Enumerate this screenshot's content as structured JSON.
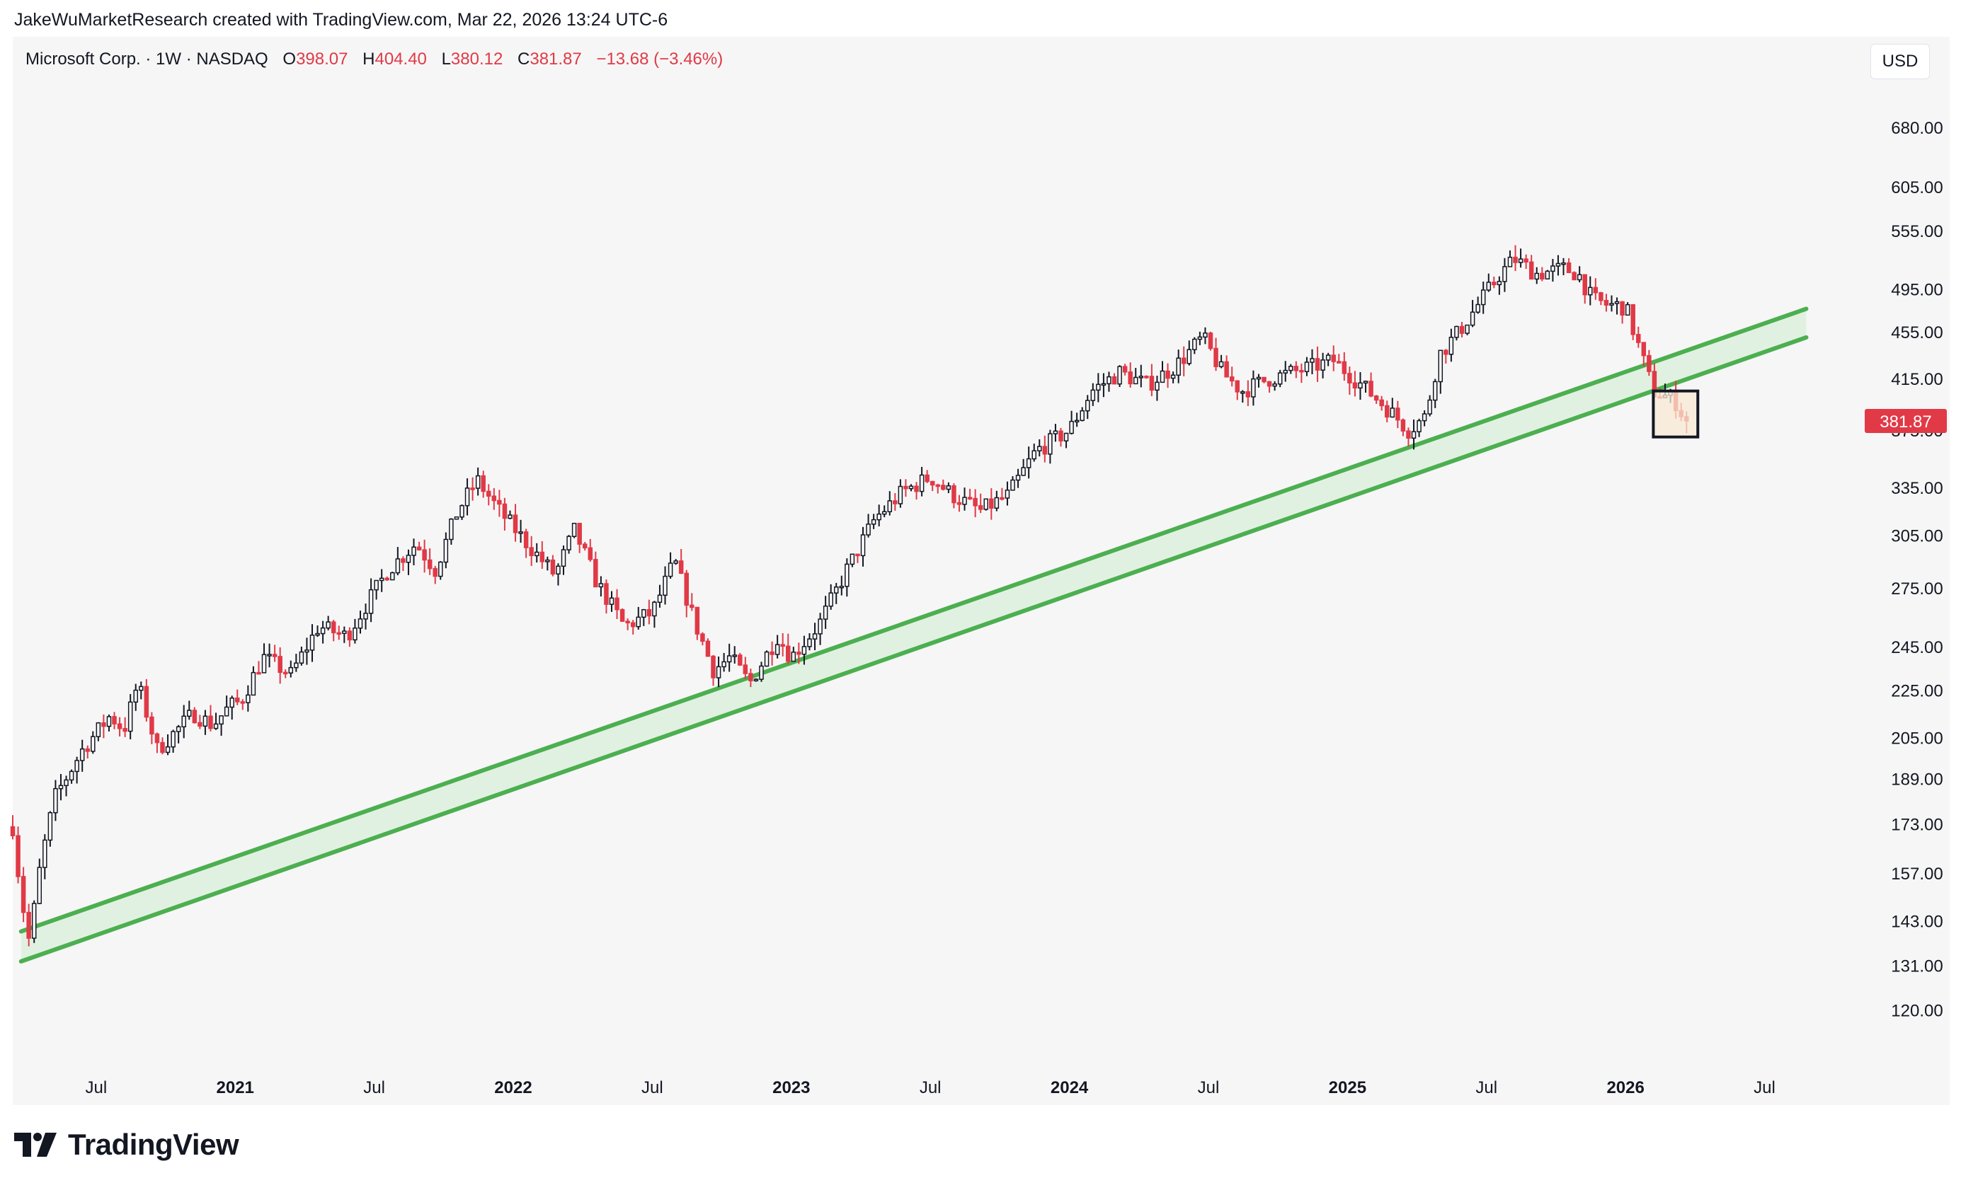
{
  "header": {
    "attribution": "JakeWuMarketResearch created with TradingView.com, Mar 22, 2026 13:24 UTC-6"
  },
  "legend": {
    "symbol": "Microsoft Corp. · 1W · NASDAQ",
    "open_label": "O",
    "open": "398.07",
    "high_label": "H",
    "high": "404.40",
    "low_label": "L",
    "low": "380.12",
    "close_label": "C",
    "close": "381.87",
    "change": "−13.68 (−3.46%)"
  },
  "currency": "USD",
  "footer": {
    "brand": "TradingView",
    "logo_icon": "tradingview-logo-icon"
  },
  "colors": {
    "up": "#131722",
    "down": "#e13946",
    "channel": "#4caf50",
    "channel_fill": "#e1f1e1",
    "highlight_fill": "#f8e9d3",
    "last_price_bg": "#e13946"
  },
  "chart_data": {
    "type": "candlestick",
    "title": "Microsoft Corp. · 1W · NASDAQ",
    "y_scale": "log",
    "ylim": [
      110,
      760
    ],
    "y_ticks": [
      120,
      131,
      143,
      157,
      173,
      189,
      205,
      225,
      245,
      275,
      305,
      335,
      375,
      415,
      455,
      495,
      555,
      605,
      680
    ],
    "y_tick_labels": [
      "120.00",
      "131.00",
      "143.00",
      "157.00",
      "173.00",
      "189.00",
      "205.00",
      "225.00",
      "245.00",
      "275.00",
      "305.00",
      "335.00",
      "375.00",
      "415.00",
      "455.00",
      "495.00",
      "555.00",
      "605.00",
      "680.00"
    ],
    "xlim": [
      2020.2,
      2026.85
    ],
    "x_ticks": [
      2020.5,
      2021.0,
      2021.5,
      2022.0,
      2022.5,
      2023.0,
      2023.5,
      2024.0,
      2024.5,
      2025.0,
      2025.5,
      2026.0,
      2026.5
    ],
    "x_tick_labels": [
      "Jul",
      "2021",
      "Jul",
      "2022",
      "Jul",
      "2023",
      "Jul",
      "2024",
      "Jul",
      "2025",
      "Jul",
      "2026",
      "Jul"
    ],
    "x_tick_bold": [
      false,
      true,
      false,
      true,
      false,
      true,
      false,
      true,
      false,
      true,
      false,
      true,
      false
    ],
    "last_price": 381.87,
    "last_price_label": "381.87",
    "price_path": [
      [
        2020.2,
        172
      ],
      [
        2020.23,
        150
      ],
      [
        2020.26,
        137
      ],
      [
        2020.3,
        160
      ],
      [
        2020.35,
        182
      ],
      [
        2020.45,
        200
      ],
      [
        2020.55,
        214
      ],
      [
        2020.6,
        208
      ],
      [
        2020.65,
        228
      ],
      [
        2020.72,
        200
      ],
      [
        2020.85,
        215
      ],
      [
        2020.92,
        210
      ],
      [
        2020.98,
        218
      ],
      [
        2021.02,
        220
      ],
      [
        2021.1,
        240
      ],
      [
        2021.2,
        232
      ],
      [
        2021.3,
        255
      ],
      [
        2021.4,
        250
      ],
      [
        2021.55,
        285
      ],
      [
        2021.65,
        300
      ],
      [
        2021.72,
        285
      ],
      [
        2021.8,
        320
      ],
      [
        2021.87,
        340
      ],
      [
        2021.95,
        320
      ],
      [
        2022.05,
        300
      ],
      [
        2022.15,
        282
      ],
      [
        2022.22,
        308
      ],
      [
        2022.3,
        278
      ],
      [
        2022.4,
        255
      ],
      [
        2022.5,
        262
      ],
      [
        2022.58,
        290
      ],
      [
        2022.65,
        258
      ],
      [
        2022.72,
        234
      ],
      [
        2022.78,
        240
      ],
      [
        2022.85,
        228
      ],
      [
        2022.95,
        250
      ],
      [
        2023.0,
        240
      ],
      [
        2023.1,
        256
      ],
      [
        2023.2,
        285
      ],
      [
        2023.3,
        315
      ],
      [
        2023.4,
        332
      ],
      [
        2023.5,
        342
      ],
      [
        2023.58,
        330
      ],
      [
        2023.68,
        320
      ],
      [
        2023.78,
        330
      ],
      [
        2023.88,
        360
      ],
      [
        2024.0,
        375
      ],
      [
        2024.08,
        405
      ],
      [
        2024.18,
        420
      ],
      [
        2024.28,
        410
      ],
      [
        2024.38,
        425
      ],
      [
        2024.48,
        450
      ],
      [
        2024.55,
        420
      ],
      [
        2024.62,
        405
      ],
      [
        2024.72,
        415
      ],
      [
        2024.8,
        420
      ],
      [
        2024.88,
        425
      ],
      [
        2024.95,
        430
      ],
      [
        2025.05,
        410
      ],
      [
        2025.15,
        390
      ],
      [
        2025.22,
        375
      ],
      [
        2025.28,
        385
      ],
      [
        2025.33,
        435
      ],
      [
        2025.4,
        455
      ],
      [
        2025.47,
        480
      ],
      [
        2025.55,
        510
      ],
      [
        2025.6,
        525
      ],
      [
        2025.68,
        510
      ],
      [
        2025.78,
        515
      ],
      [
        2025.83,
        510
      ],
      [
        2025.88,
        485
      ],
      [
        2025.93,
        480
      ],
      [
        2026.0,
        478
      ],
      [
        2026.05,
        440
      ],
      [
        2026.1,
        405
      ],
      [
        2026.15,
        400
      ],
      [
        2026.19,
        395
      ],
      [
        2026.21,
        381.87
      ]
    ],
    "channel": {
      "name": "ascending support channel",
      "upper_line": [
        [
          2020.23,
          140
        ],
        [
          2026.65,
          476
        ]
      ],
      "lower_line": [
        [
          2020.23,
          132
        ],
        [
          2026.65,
          450
        ]
      ]
    },
    "highlight_box": {
      "name": "current price zone",
      "x_range": [
        2026.1,
        2026.26
      ],
      "y_range": [
        370,
        405
      ]
    }
  }
}
